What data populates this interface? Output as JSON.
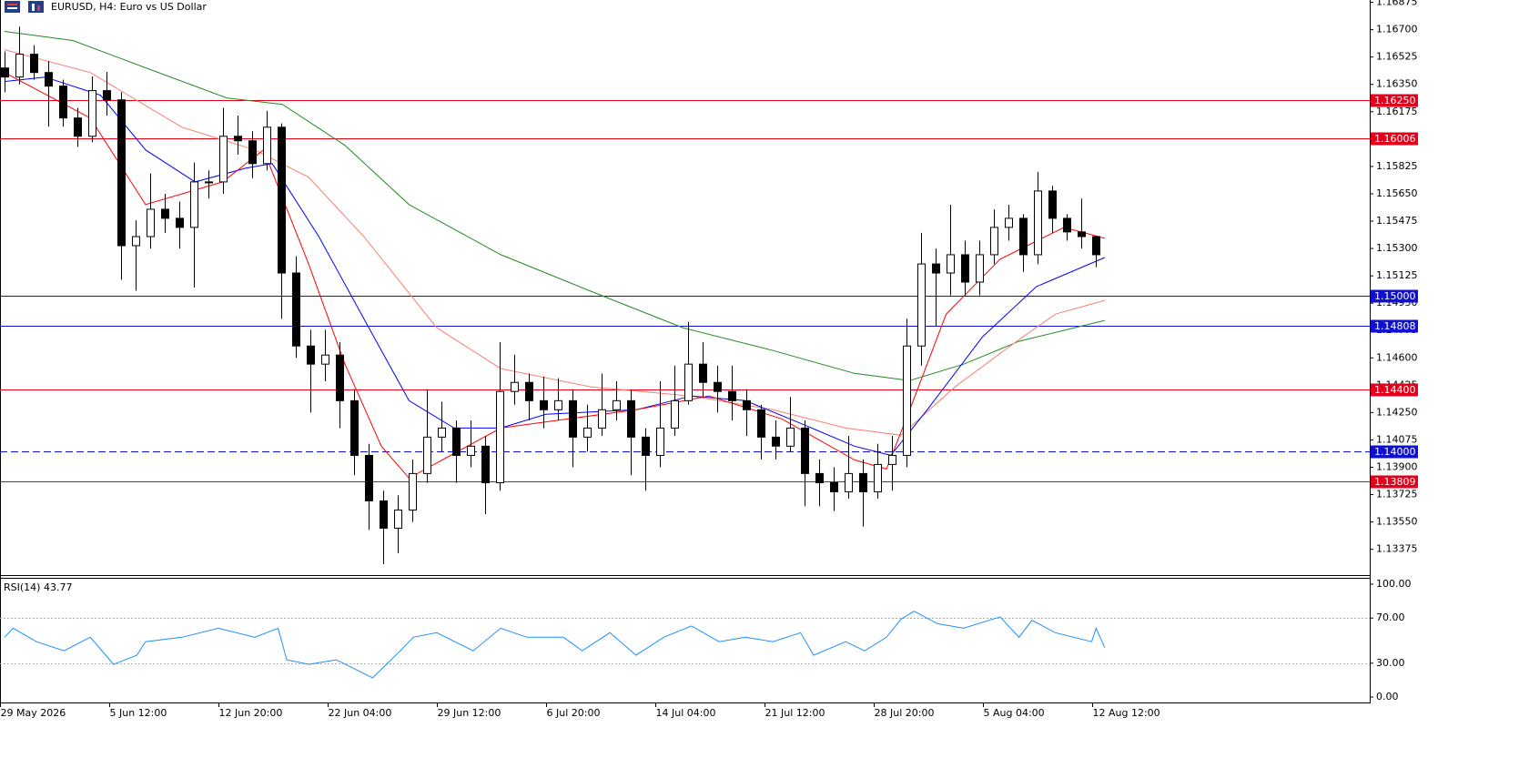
{
  "chart_data": [
    {
      "type": "candlestick",
      "title": "EURUSD, H4:  Euro vs US Dollar",
      "xlim": [
        -0.3,
        93.8
      ],
      "ylim": [
        1.1321,
        1.1689
      ],
      "yticks": [
        1.16875,
        {
          "value": 1.167,
          "label": "1.16700"
        },
        1.16525,
        {
          "value": 1.1635,
          "label": "1.16350"
        },
        1.16175,
        1.15825,
        {
          "value": 1.1565,
          "label": "1.15650"
        },
        1.15475,
        {
          "value": 1.153,
          "label": "1.15300"
        },
        1.15125,
        {
          "value": 1.1495,
          "label": "1.14950"
        },
        1.14775,
        {
          "value": 1.146,
          "label": "1.14600"
        },
        1.14425,
        {
          "value": 1.1425,
          "label": "1.14250"
        },
        1.14075,
        {
          "value": 1.139,
          "label": "1.13900"
        },
        1.13725,
        {
          "value": 1.1355,
          "label": "1.13550"
        },
        1.13375
      ],
      "candles": {
        "open": [
          1.16455,
          1.16397,
          1.16543,
          1.16426,
          1.16339,
          1.16135,
          1.16018,
          1.1631,
          1.16251,
          1.15318,
          1.15376,
          1.15551,
          1.15493,
          1.15435,
          1.15726,
          1.15726,
          1.16018,
          1.15989,
          1.15843,
          1.16076,
          1.15143,
          1.14676,
          1.1456,
          1.14618,
          1.14326,
          1.13976,
          1.13685,
          1.1351,
          1.13626,
          1.1386,
          1.14093,
          1.14151,
          1.13976,
          1.14035,
          1.13801,
          1.14385,
          1.14443,
          1.14326,
          1.14268,
          1.14326,
          1.14093,
          1.14151,
          1.14268,
          1.14326,
          1.14093,
          1.13976,
          1.14151,
          1.14326,
          1.1456,
          1.14443,
          1.14385,
          1.14326,
          1.14268,
          1.14093,
          1.14035,
          1.14151,
          1.1386,
          1.13801,
          1.13743,
          1.1386,
          1.13743,
          1.13918,
          1.13976,
          1.14676,
          1.15201,
          1.15143,
          1.1526,
          1.15085,
          1.1526,
          1.15435,
          1.15493,
          1.1526,
          1.15668,
          1.15493,
          1.15406,
          1.15376
        ],
        "high": [
          1.1656,
          1.1672,
          1.166,
          1.165,
          1.1638,
          1.162,
          1.164,
          1.1643,
          1.163,
          1.1548,
          1.1578,
          1.1565,
          1.156,
          1.1585,
          1.158,
          1.162,
          1.1615,
          1.1605,
          1.1618,
          1.161,
          1.1525,
          1.1478,
          1.1478,
          1.147,
          1.144,
          1.1405,
          1.1375,
          1.1372,
          1.1395,
          1.144,
          1.1432,
          1.142,
          1.142,
          1.141,
          1.147,
          1.1462,
          1.145,
          1.1448,
          1.1447,
          1.144,
          1.143,
          1.145,
          1.1445,
          1.144,
          1.1415,
          1.1445,
          1.1455,
          1.1483,
          1.147,
          1.1455,
          1.1455,
          1.144,
          1.143,
          1.142,
          1.1435,
          1.142,
          1.1395,
          1.139,
          1.141,
          1.1395,
          1.1405,
          1.141,
          1.1485,
          1.154,
          1.153,
          1.1558,
          1.1535,
          1.1535,
          1.1555,
          1.1558,
          1.1552,
          1.1579,
          1.157,
          1.1552,
          1.1562,
          1.1538
        ],
        "low": [
          1.163,
          1.1635,
          1.1638,
          1.1608,
          1.1608,
          1.1595,
          1.1598,
          1.1615,
          1.151,
          1.1503,
          1.153,
          1.154,
          1.153,
          1.1505,
          1.1562,
          1.1565,
          1.159,
          1.1575,
          1.158,
          1.1485,
          1.146,
          1.1425,
          1.1445,
          1.1415,
          1.1385,
          1.135,
          1.1328,
          1.1335,
          1.1355,
          1.138,
          1.14,
          1.138,
          1.139,
          1.136,
          1.1375,
          1.143,
          1.142,
          1.1415,
          1.142,
          1.139,
          1.14,
          1.141,
          1.142,
          1.1385,
          1.1375,
          1.139,
          1.141,
          1.143,
          1.1435,
          1.1425,
          1.142,
          1.141,
          1.1395,
          1.1395,
          1.14,
          1.1365,
          1.1365,
          1.1362,
          1.137,
          1.1352,
          1.137,
          1.1375,
          1.139,
          1.1455,
          1.148,
          1.15,
          1.15,
          1.15,
          1.152,
          1.1535,
          1.1515,
          1.152,
          1.154,
          1.1535,
          1.153,
          1.1518
        ],
        "close": [
          1.16397,
          1.16543,
          1.16426,
          1.16339,
          1.16135,
          1.16018,
          1.1631,
          1.16251,
          1.15318,
          1.15376,
          1.15551,
          1.15493,
          1.15435,
          1.15726,
          1.15726,
          1.16018,
          1.15989,
          1.15843,
          1.16076,
          1.15143,
          1.14676,
          1.1456,
          1.14618,
          1.14326,
          1.13976,
          1.13685,
          1.1351,
          1.13626,
          1.1386,
          1.14093,
          1.14151,
          1.13976,
          1.14035,
          1.13801,
          1.14385,
          1.14443,
          1.14326,
          1.14268,
          1.14326,
          1.14093,
          1.14151,
          1.14268,
          1.14326,
          1.14093,
          1.13976,
          1.14151,
          1.14326,
          1.1456,
          1.14443,
          1.14385,
          1.14326,
          1.14268,
          1.14093,
          1.14035,
          1.14151,
          1.1386,
          1.13801,
          1.13743,
          1.1386,
          1.13743,
          1.13918,
          1.13976,
          1.14676,
          1.15201,
          1.15143,
          1.1526,
          1.15085,
          1.1526,
          1.15435,
          1.15493,
          1.1526,
          1.15668,
          1.15493,
          1.15406,
          1.15376,
          1.1526
        ]
      },
      "series": [
        {
          "color": "#228b22",
          "x": [
            0,
            4.7,
            9.7,
            15.3,
            19.1,
            23.4,
            27.8,
            34.1,
            40.3,
            46.6,
            52.8,
            58.4,
            62.2,
            65.9,
            69.7,
            75.6
          ],
          "values": [
            1.16689,
            1.16631,
            1.16456,
            1.16263,
            1.16222,
            1.1596,
            1.15581,
            1.1526,
            1.15026,
            1.14793,
            1.14647,
            1.14501,
            1.14455,
            1.1456,
            1.14706,
            1.1484
          ]
        },
        {
          "color": "#fa8072",
          "x": [
            0,
            5.9,
            12.2,
            17.2,
            20.9,
            24.7,
            29.7,
            34.1,
            40.3,
            47.2,
            52.8,
            57.8,
            61.6,
            65.3,
            69.1,
            72.2,
            75.6
          ],
          "values": [
            1.16572,
            1.16426,
            1.16076,
            1.15931,
            1.15756,
            1.15376,
            1.14793,
            1.14531,
            1.14414,
            1.14356,
            1.14268,
            1.14151,
            1.14105,
            1.14414,
            1.14676,
            1.1488,
            1.14968
          ]
        },
        {
          "color": "#0000ff",
          "x": [
            0,
            2.8,
            6.6,
            9.7,
            13.1,
            16.6,
            18.4,
            21.6,
            24.7,
            27.8,
            30.9,
            34.1,
            37.2,
            43.4,
            47.2,
            50.9,
            54.7,
            58.4,
            60.9,
            63.4,
            67.2,
            70.9,
            75.6
          ],
          "values": [
            1.16368,
            1.16397,
            1.16281,
            1.15931,
            1.15726,
            1.15814,
            1.15843,
            1.15376,
            1.14851,
            1.14326,
            1.14151,
            1.14151,
            1.14239,
            1.14268,
            1.14356,
            1.14326,
            1.14181,
            1.14035,
            1.13976,
            1.14268,
            1.14735,
            1.15056,
            1.15242
          ]
        },
        {
          "color": "#ff0000",
          "x": [
            0,
            5.9,
            9.7,
            15,
            17.8,
            20.9,
            23.4,
            25.9,
            27.8,
            34.1,
            43.4,
            48.4,
            53.4,
            58.4,
            60.6,
            62.2,
            64.7,
            68.4,
            70.9,
            72.8,
            75.6
          ],
          "values": [
            1.16426,
            1.16135,
            1.15581,
            1.15726,
            1.15931,
            1.15201,
            1.1456,
            1.14035,
            1.13831,
            1.14151,
            1.14268,
            1.14356,
            1.1421,
            1.13947,
            1.13889,
            1.14268,
            1.1488,
            1.15231,
            1.15347,
            1.15435,
            1.15365
          ]
        }
      ],
      "hlines": [
        {
          "value": 1.1625,
          "label": "1.16250",
          "color": "#e3001b"
        },
        {
          "value": 1.16006,
          "color": "#e3001b"
        },
        {
          "value": 1.15,
          "label": "1.15000",
          "color": "#1010d0"
        },
        {
          "value": 1.14808,
          "color": "#1010d0"
        },
        {
          "value": 1.144,
          "label": "1.14400",
          "color": "#e3001b"
        },
        {
          "value": 1.14,
          "label": "1.14000",
          "color": "#1010d0",
          "dashed": true
        },
        {
          "value": 1.13809,
          "color": "#e3001b"
        }
      ]
    },
    {
      "type": "line",
      "title": "RSI(14) 43.77",
      "xlim": [
        -0.3,
        93.8
      ],
      "xticks": [
        {
          "value": -0.3,
          "label": "29 May 2026"
        },
        {
          "value": 7.2,
          "label": "5 Jun 12:00"
        },
        {
          "value": 14.7,
          "label": "12 Jun 20:00"
        },
        {
          "value": 22.2,
          "label": "22 Jun 04:00"
        },
        {
          "value": 29.7,
          "label": "29 Jun 12:00"
        },
        {
          "value": 37.2,
          "label": "6 Jul 20:00"
        },
        {
          "value": 44.7,
          "label": "14 Jul 04:00"
        },
        {
          "value": 52.2,
          "label": "21 Jul 12:00"
        },
        {
          "value": 59.7,
          "label": "28 Jul 20:00"
        },
        {
          "value": 67.2,
          "label": "5 Aug 04:00"
        },
        {
          "value": 74.7,
          "label": "12 Aug 12:00"
        }
      ],
      "ylim": [
        -4.8,
        104.8
      ],
      "yticks": [
        {
          "value": 100,
          "label": "100.00"
        },
        {
          "value": 70,
          "label": "70.00"
        },
        {
          "value": 30,
          "label": "30.00"
        },
        {
          "value": 0,
          "label": "0.00"
        }
      ],
      "levels": [
        70,
        30
      ],
      "series": [
        {
          "color": "#1e90ff",
          "x": [
            0,
            0.6,
            2.2,
            4.1,
            5.9,
            7.5,
            9.1,
            9.7,
            12.2,
            14.7,
            17.2,
            18.8,
            19.4,
            20.9,
            22.8,
            25.3,
            27.2,
            28.1,
            29.7,
            32.2,
            34.1,
            35.9,
            38.4,
            39.7,
            41.6,
            43.4,
            45.3,
            47.2,
            49.1,
            50.9,
            52.8,
            54.7,
            55.6,
            57.8,
            59.1,
            60.6,
            61.6,
            62.5,
            64.1,
            65.9,
            68.4,
            69.7,
            70.6,
            72.2,
            74.7,
            75,
            75.6
          ],
          "values": [
            53,
            61,
            49,
            41,
            53,
            29,
            37,
            49,
            53,
            61,
            53,
            61,
            33,
            29,
            33,
            17,
            41,
            53,
            57,
            41,
            61,
            53,
            53,
            41,
            57,
            37,
            53,
            63,
            49,
            53,
            49,
            57,
            37,
            49,
            41,
            53,
            69,
            76,
            65,
            61,
            71,
            53,
            68,
            57,
            49,
            61,
            43.77
          ]
        }
      ]
    }
  ]
}
